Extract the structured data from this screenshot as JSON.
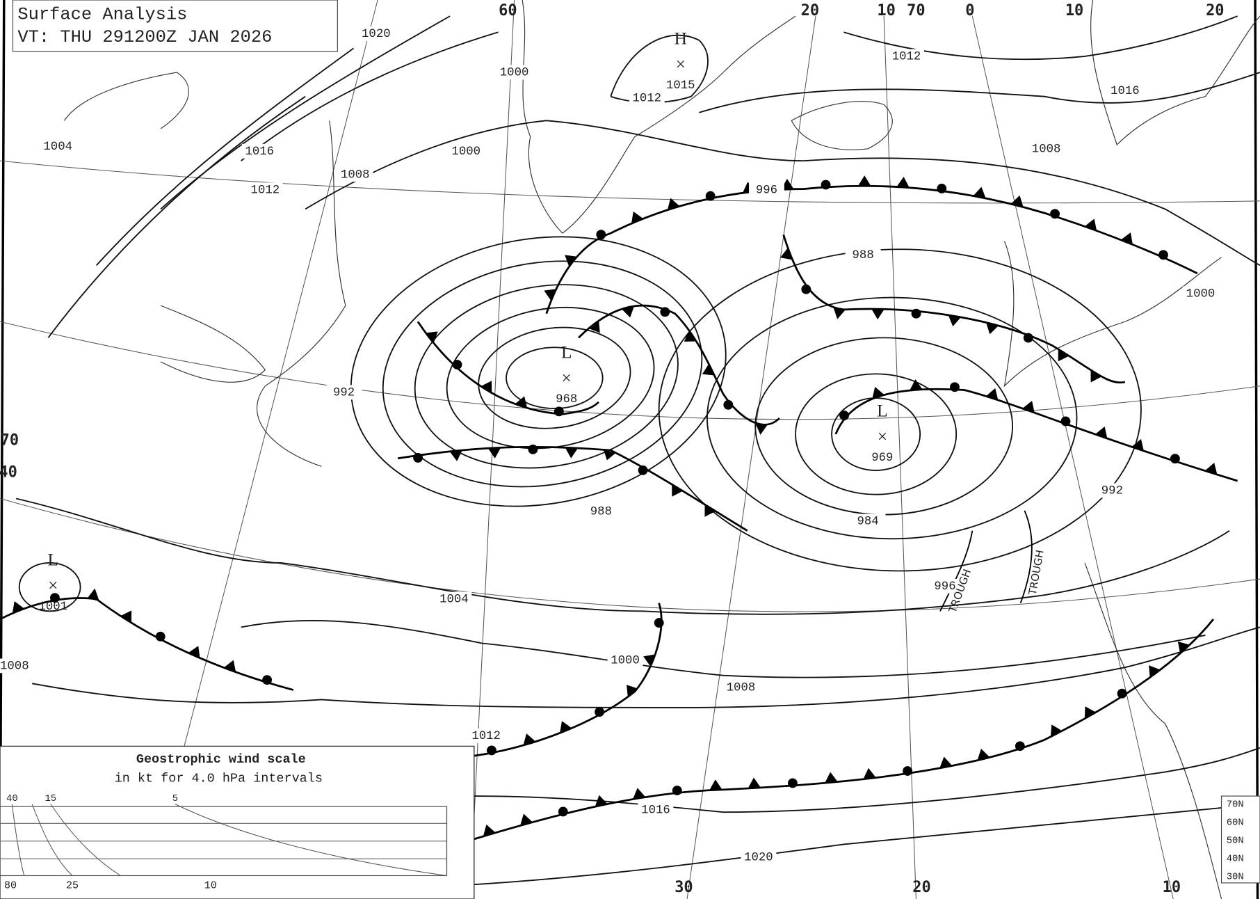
{
  "header": {
    "title": "Surface Analysis",
    "valid_time": "VT: THU 291200Z JAN 2026"
  },
  "pressure_centers": [
    {
      "type": "H",
      "value": "1015"
    },
    {
      "type": "L",
      "value": "968"
    },
    {
      "type": "L",
      "value": "969"
    },
    {
      "type": "L",
      "value": "1001"
    }
  ],
  "isobar_labels": [
    "1020",
    "1012",
    "1012",
    "1016",
    "1008",
    "1000",
    "1004",
    "1016",
    "1008",
    "1012",
    "1000",
    "996",
    "988",
    "1000",
    "992",
    "992",
    "988",
    "984",
    "996",
    "1004",
    "1008",
    "1000",
    "1008",
    "1012",
    "1016",
    "1020"
  ],
  "grid_labels": [
    "60",
    "20",
    "10",
    "70",
    "0",
    "10",
    "20",
    "70",
    "40",
    "30",
    "20",
    "10"
  ],
  "trough_labels": [
    "TROUGH",
    "TROUGH"
  ],
  "wind_scale": {
    "title": "Geostrophic wind scale",
    "subtitle": "in kt for 4.0 hPa intervals",
    "top_labels": [
      "40",
      "15",
      "5"
    ],
    "bottom_labels": [
      "80",
      "25",
      "10"
    ],
    "latitudes": [
      "70N",
      "60N",
      "50N",
      "40N",
      "30N"
    ]
  }
}
